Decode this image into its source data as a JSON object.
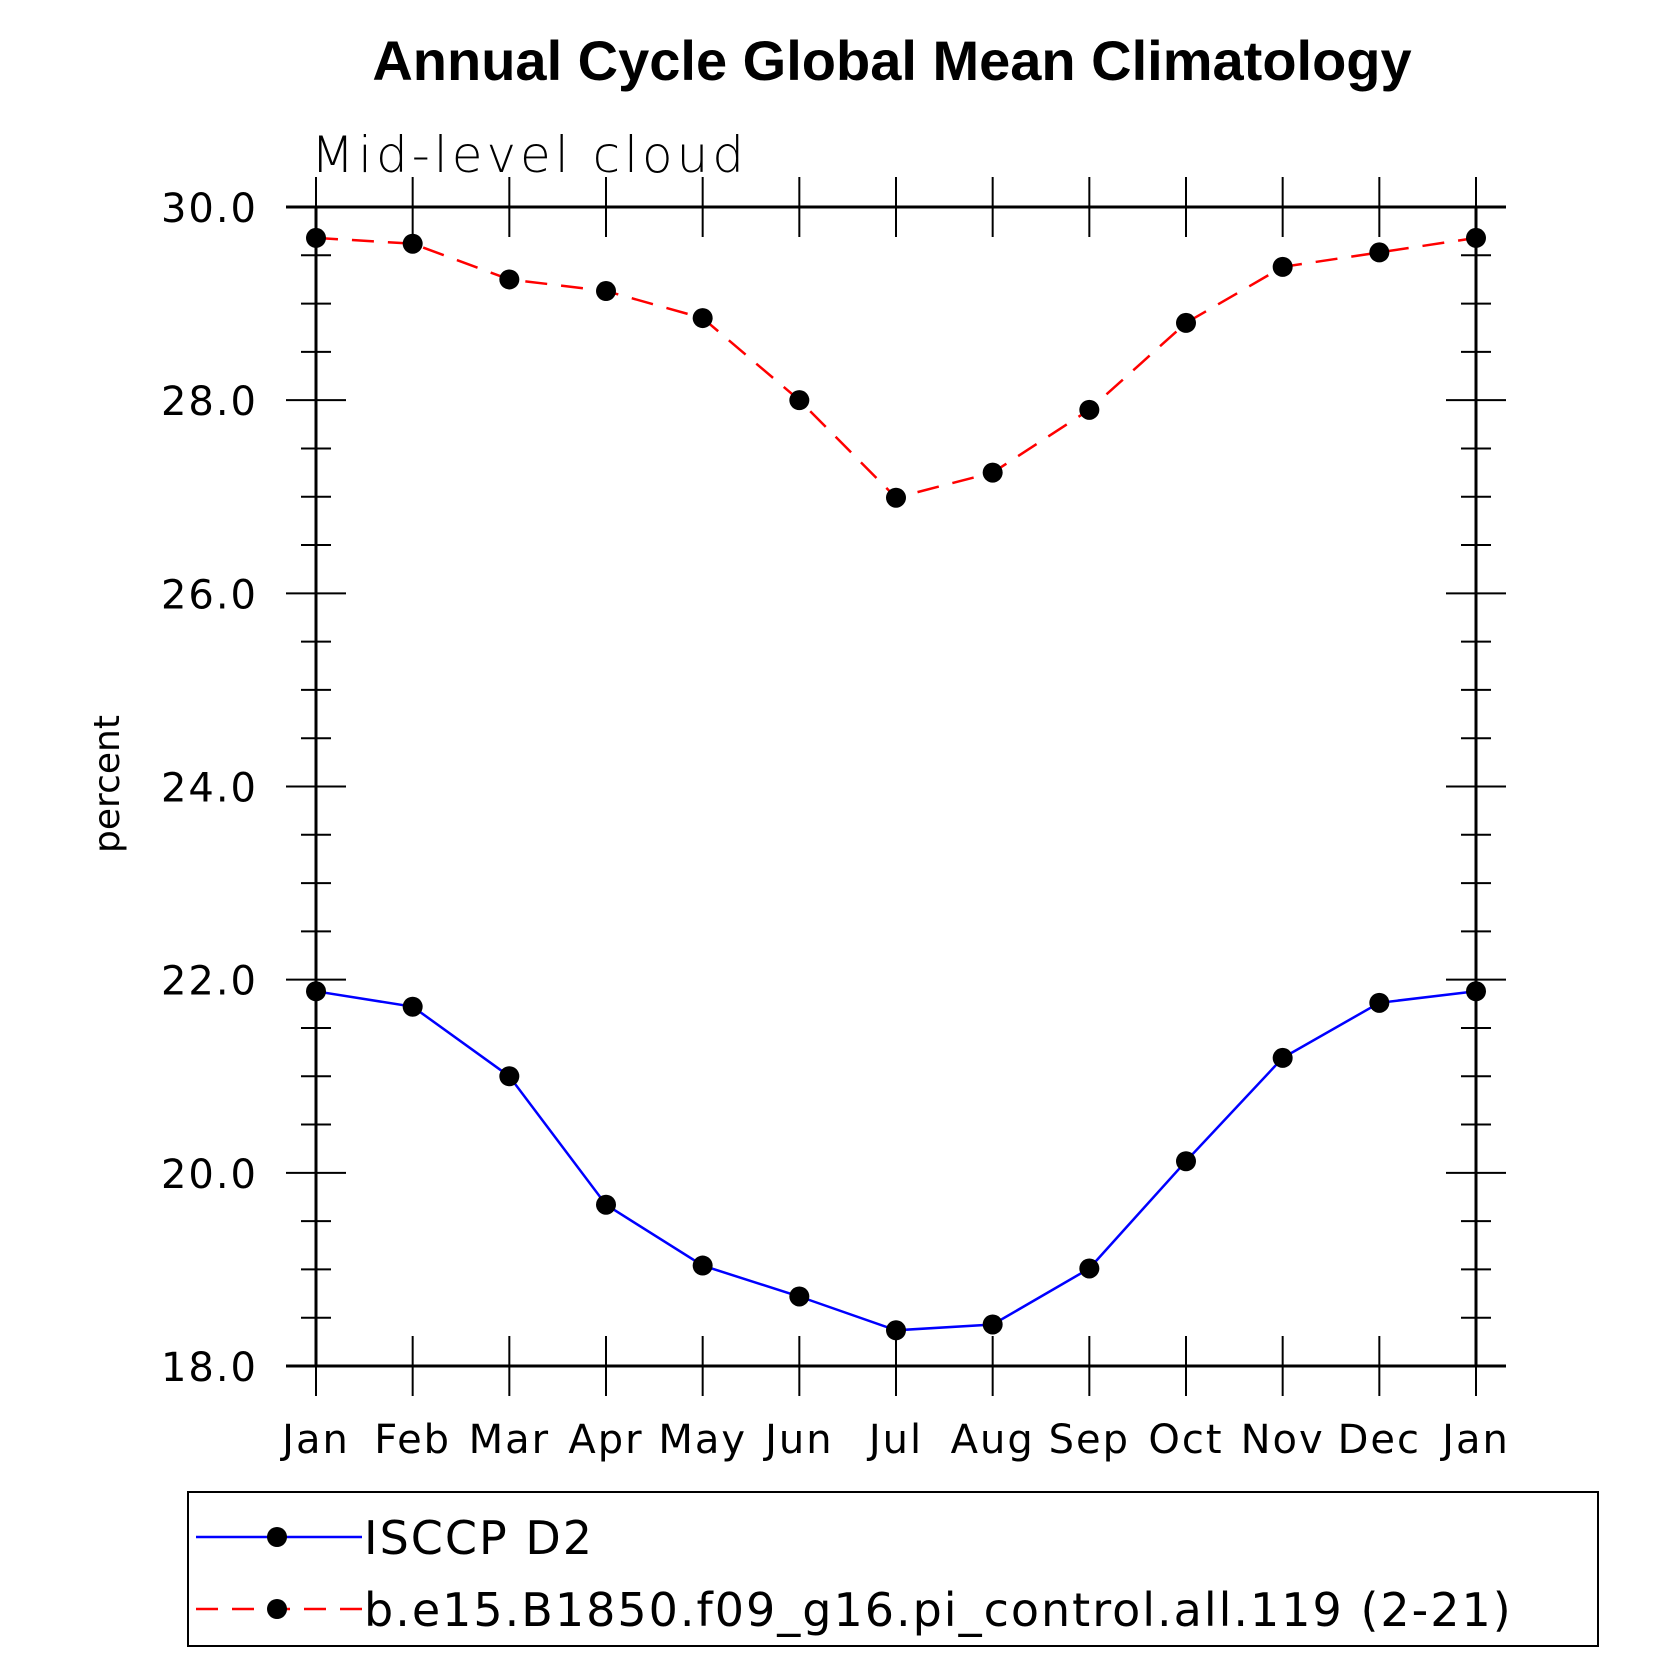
{
  "chart_data": {
    "type": "line",
    "title": "Annual Cycle Global Mean Climatology",
    "subtitle": "Mid-level cloud",
    "ylabel": "percent",
    "xlabel": "",
    "categories": [
      "Jan",
      "Feb",
      "Mar",
      "Apr",
      "May",
      "Jun",
      "Jul",
      "Aug",
      "Sep",
      "Oct",
      "Nov",
      "Dec",
      "Jan"
    ],
    "ylim": [
      18.0,
      30.0
    ],
    "yticks": [
      "18.0",
      "20.0",
      "22.0",
      "24.0",
      "26.0",
      "28.0",
      "30.0"
    ],
    "series": [
      {
        "name": "ISCCP D2",
        "color": "#0000ff",
        "dash": "solid",
        "values": [
          21.88,
          21.72,
          21.0,
          19.67,
          19.04,
          18.72,
          18.37,
          18.43,
          19.01,
          20.12,
          21.19,
          21.76,
          21.88
        ]
      },
      {
        "name": "b.e15.B1850.f09_g16.pi_control.all.119 (2-21)",
        "color": "#ff0000",
        "dash": "dashed",
        "values": [
          29.68,
          29.62,
          29.25,
          29.13,
          28.85,
          28.0,
          26.99,
          27.25,
          27.9,
          28.8,
          29.38,
          29.53,
          29.68
        ]
      }
    ],
    "legend_position": "bottom"
  }
}
